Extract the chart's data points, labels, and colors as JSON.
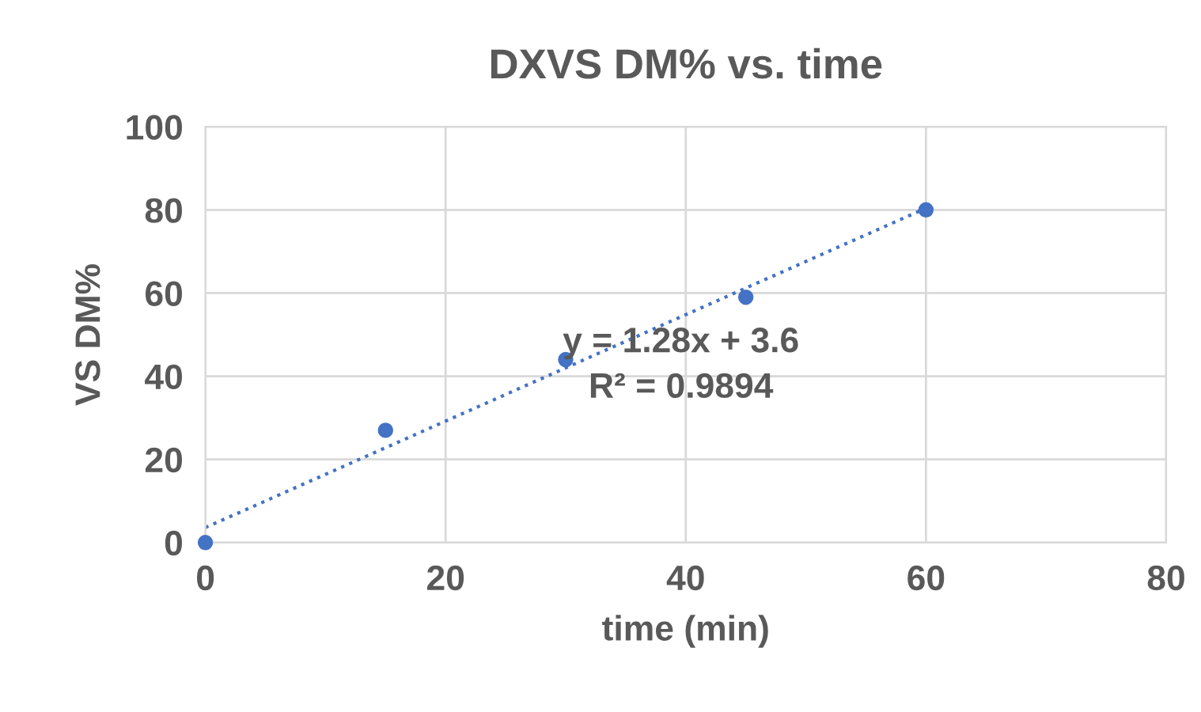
{
  "chart_data": {
    "type": "scatter",
    "title": "DXVS DM% vs. time",
    "xlabel": "time (min)",
    "ylabel": "VS DM%",
    "xlim": [
      0,
      80
    ],
    "xticks": [
      0,
      20,
      40,
      60,
      80
    ],
    "ylim": [
      0,
      100
    ],
    "yticks": [
      0,
      20,
      40,
      60,
      80,
      100
    ],
    "grid": true,
    "legend": false,
    "marker": "circle",
    "series": [
      {
        "color": "#4472c4",
        "x": [
          0,
          15,
          30,
          45,
          60
        ],
        "values": [
          0,
          27,
          44,
          59,
          80
        ]
      },
      {
        "type": "line",
        "color": "#4472c4",
        "line_style": "dotted",
        "marker": "none",
        "x": [
          0,
          60
        ],
        "values": [
          3.6,
          80.4
        ]
      }
    ],
    "annotations": [
      "y = 1.28x + 3.6\nR² = 0.9894"
    ]
  }
}
